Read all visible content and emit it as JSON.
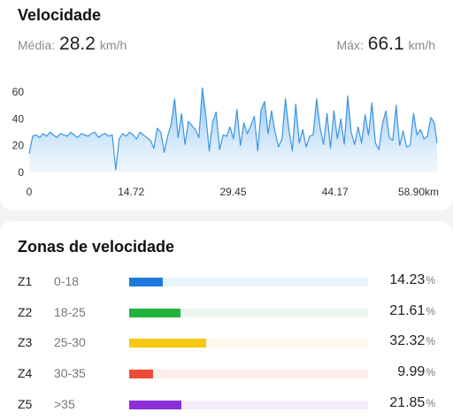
{
  "speed": {
    "title": "Velocidade",
    "avg_label": "Média:",
    "avg_value": "28.2",
    "unit": "km/h",
    "max_label": "Máx:",
    "max_value": "66.1"
  },
  "chart_data": {
    "type": "area",
    "title": "Velocidade",
    "xlabel": "",
    "ylabel": "",
    "x_ticks": [
      "0",
      "14.72",
      "29.45",
      "44.17",
      "58.90km"
    ],
    "x_tick_values": [
      0,
      14.72,
      29.45,
      44.17,
      58.9
    ],
    "y_ticks": [
      "0",
      "20",
      "40",
      "60"
    ],
    "y_tick_values": [
      0,
      20,
      40,
      60
    ],
    "xlim": [
      0,
      58.9
    ],
    "ylim": [
      0,
      66
    ],
    "grid": false,
    "color": "#4a9ee6",
    "series": [
      {
        "x": [
          0,
          0.5,
          1,
          1.5,
          2,
          2.5,
          3,
          3.5,
          4,
          4.5,
          5,
          5.5,
          6,
          6.5,
          7,
          7.5,
          8,
          8.5,
          9,
          9.5,
          10,
          10.5,
          11,
          11.5,
          12,
          12.5,
          13,
          13.5,
          14,
          14.5,
          15,
          15.5,
          16,
          16.5,
          17,
          17.5,
          18,
          18.5,
          19,
          19.5,
          20,
          20.5,
          21,
          21.5,
          22,
          22.5,
          23,
          23.5,
          24,
          24.5,
          25,
          25.5,
          26,
          26.5,
          27,
          27.5,
          28,
          28.5,
          29,
          29.5,
          30,
          30.5,
          31,
          31.5,
          32,
          32.5,
          33,
          33.5,
          34,
          34.5,
          35,
          35.5,
          36,
          36.5,
          37,
          37.5,
          38,
          38.5,
          39,
          39.5,
          40,
          40.5,
          41,
          41.5,
          42,
          42.5,
          43,
          43.5,
          44,
          44.5,
          45,
          45.5,
          46,
          46.5,
          47,
          47.5,
          48,
          48.5,
          49,
          49.5,
          50,
          50.5,
          51,
          51.5,
          52,
          52.5,
          53,
          53.5,
          54,
          54.5,
          55,
          55.5,
          56,
          56.5,
          57,
          57.5,
          58,
          58.5,
          58.9
        ],
        "y": [
          14,
          27,
          28,
          26,
          29,
          27,
          30,
          28,
          26,
          29,
          28,
          27,
          30,
          28,
          26,
          29,
          28,
          27,
          29,
          30,
          26,
          28,
          29,
          27,
          28,
          2,
          25,
          29,
          27,
          30,
          28,
          25,
          30,
          28,
          26,
          24,
          18,
          33,
          30,
          15,
          27,
          36,
          55,
          26,
          44,
          21,
          38,
          35,
          32,
          26,
          63,
          43,
          16,
          38,
          45,
          17,
          28,
          27,
          34,
          25,
          47,
          20,
          37,
          29,
          35,
          42,
          16,
          47,
          53,
          29,
          46,
          30,
          19,
          25,
          55,
          32,
          16,
          51,
          22,
          32,
          19,
          27,
          28,
          55,
          34,
          21,
          44,
          18,
          46,
          25,
          40,
          21,
          57,
          30,
          21,
          34,
          22,
          43,
          28,
          52,
          22,
          17,
          36,
          46,
          26,
          24,
          50,
          20,
          31,
          19,
          20,
          44,
          28,
          32,
          25,
          27,
          41,
          37,
          22
        ]
      }
    ]
  },
  "zones": {
    "title": "Zonas de velocidade",
    "items": [
      {
        "name": "Z1",
        "range": "0-18",
        "percent": "14.23",
        "fraction": 0.1423,
        "color": "#1f7ae0",
        "track": "#e9f3fc"
      },
      {
        "name": "Z2",
        "range": "18-25",
        "percent": "21.61",
        "fraction": 0.2161,
        "color": "#22b33d",
        "track": "#eef7ef"
      },
      {
        "name": "Z3",
        "range": "25-30",
        "percent": "32.32",
        "fraction": 0.3232,
        "color": "#f6c90e",
        "track": "#fdf9ea"
      },
      {
        "name": "Z4",
        "range": "30-35",
        "percent": "9.99",
        "fraction": 0.0999,
        "color": "#ee4b36",
        "track": "#fdeeec"
      },
      {
        "name": "Z5",
        "range": ">35",
        "percent": "21.85",
        "fraction": 0.2185,
        "color": "#8b2fd9",
        "track": "#f4ecfb"
      }
    ],
    "percent_sign": "%"
  }
}
